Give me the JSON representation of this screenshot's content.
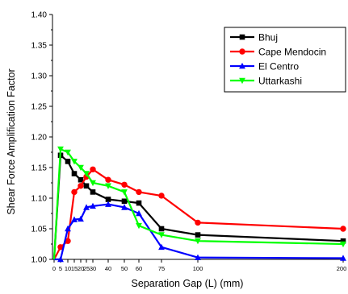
{
  "chart_data": {
    "type": "line",
    "title": "",
    "xlabel": "Separation Gap (L) (mm)",
    "ylabel": "Shear Force Amplification Factor",
    "xlim": [
      0,
      200
    ],
    "ylim": [
      1.0,
      1.4
    ],
    "x_ticks": [
      0,
      5,
      10,
      15,
      20,
      25,
      30,
      40,
      50,
      60,
      75,
      100,
      200
    ],
    "x_tick_labels": [
      "0",
      "5",
      "10",
      "15",
      "20",
      "25",
      "30",
      "40",
      "50",
      "60",
      "75",
      "100",
      "200"
    ],
    "y_ticks": [
      1.0,
      1.05,
      1.1,
      1.15,
      1.2,
      1.25,
      1.3,
      1.35,
      1.4
    ],
    "y_tick_labels": [
      "1.00",
      "1.05",
      "1.10",
      "1.15",
      "1.20",
      "1.25",
      "1.30",
      "1.35",
      "1.40"
    ],
    "grid": false,
    "legend_position": "top-right",
    "x": [
      0,
      5,
      10,
      15,
      20,
      25,
      30,
      40,
      50,
      60,
      75,
      100,
      200
    ],
    "series": [
      {
        "name": "Bhuj",
        "color": "#000000",
        "marker": "square",
        "values": [
          1.0,
          1.17,
          1.16,
          1.14,
          1.13,
          1.12,
          1.11,
          1.098,
          1.095,
          1.092,
          1.05,
          1.04,
          1.03
        ]
      },
      {
        "name": "Cape Mendocin",
        "color": "#ff0000",
        "marker": "circle",
        "values": [
          1.0,
          1.02,
          1.03,
          1.11,
          1.12,
          1.135,
          1.147,
          1.13,
          1.122,
          1.11,
          1.104,
          1.06,
          1.05
        ]
      },
      {
        "name": "El Centro",
        "color": "#0000ff",
        "marker": "triangle-up",
        "values": [
          1.0,
          1.0,
          1.05,
          1.065,
          1.066,
          1.085,
          1.087,
          1.09,
          1.085,
          1.075,
          1.02,
          1.003,
          1.002
        ]
      },
      {
        "name": "Uttarkashi",
        "color": "#00ff00",
        "marker": "triangle-down",
        "values": [
          1.0,
          1.18,
          1.175,
          1.16,
          1.15,
          1.14,
          1.125,
          1.12,
          1.11,
          1.055,
          1.04,
          1.03,
          1.025
        ]
      }
    ]
  }
}
